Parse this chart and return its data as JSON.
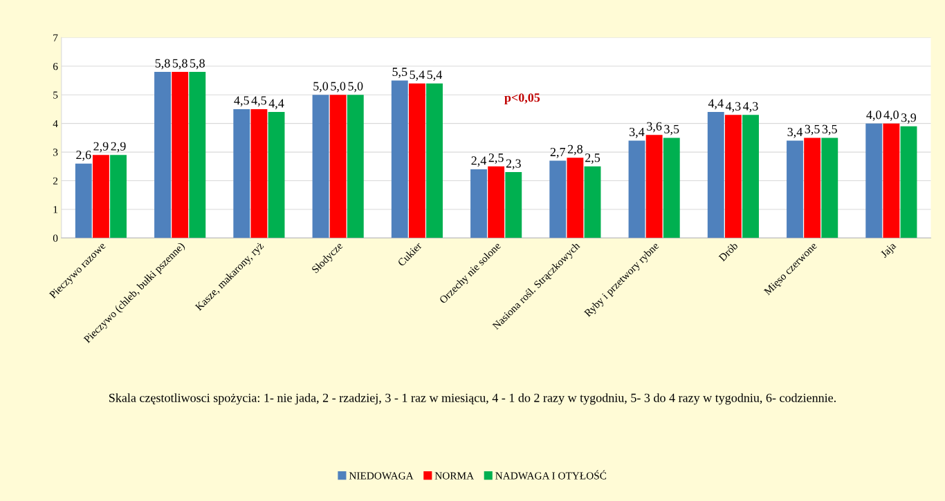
{
  "chart_data": {
    "type": "bar",
    "categories": [
      "Pieczywo razowe",
      "Pieczywo (chleb, bułki pszenne)",
      "Kasze, makarony, ryż",
      "Słodycze",
      "Cukier",
      "Orzechy nie solone",
      "Nasiona rośl. Strączkowych",
      "Ryby i przetwory rybne",
      "Drób",
      "Mięso czerwone",
      "Jaja"
    ],
    "series": [
      {
        "name": "NIEDOWAGA",
        "color": "#4f81bd",
        "values": [
          2.6,
          5.8,
          4.5,
          5.0,
          5.5,
          2.4,
          2.7,
          3.4,
          4.4,
          3.4,
          4.0
        ],
        "value_labels": [
          "2,6",
          "5,8",
          "4,5",
          "5,0",
          "5,5",
          "2,4",
          "2,7",
          "3,4",
          "4,4",
          "3,4",
          "4,0"
        ]
      },
      {
        "name": "NORMA",
        "color": "#ff0000",
        "values": [
          2.9,
          5.8,
          4.5,
          5.0,
          5.4,
          2.5,
          2.8,
          3.6,
          4.3,
          3.5,
          4.0
        ],
        "value_labels": [
          "2,9",
          "5,8",
          "4,5",
          "5,0",
          "5,4",
          "2,5",
          "2,8",
          "3,6",
          "4,3",
          "3,5",
          "4,0"
        ]
      },
      {
        "name": "NADWAGA I OTYŁOŚĆ",
        "color": "#00b050",
        "values": [
          2.9,
          5.8,
          4.4,
          5.0,
          5.4,
          2.3,
          2.5,
          3.5,
          4.3,
          3.5,
          3.9
        ],
        "value_labels": [
          "2,9",
          "5,8",
          "4,4",
          "5,0",
          "5,4",
          "2,3",
          "2,5",
          "3,5",
          "4,3",
          "3,5",
          "3,9"
        ]
      }
    ],
    "ylim": [
      0,
      7
    ],
    "yticks": [
      0,
      1,
      2,
      3,
      4,
      5,
      6,
      7
    ],
    "grid": "y",
    "legend": "bottom",
    "annotations": [
      "p<0,05",
      "Skala częstotliwosci spożycia: 1- nie jada, 2 - rzadziej, 3 - 1 raz w miesiącu, 4 - 1 do 2 razy w tygodniu, 5- 3 do 4 razy w tygodniu, 6- codziennie."
    ]
  }
}
